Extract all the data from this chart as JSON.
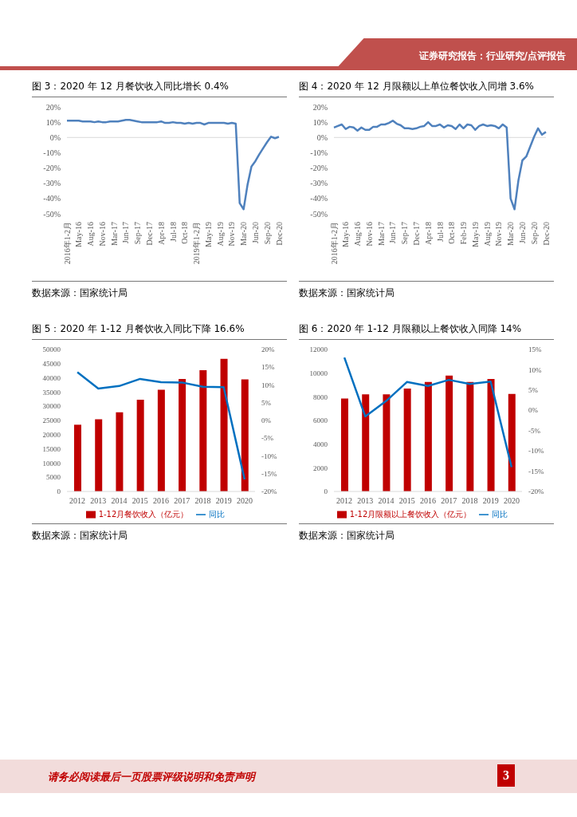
{
  "chart_data": [
    {
      "type": "other",
      "title": "证券研究报告：行业研究/点评报告",
      "annotations": [
        "请务必阅读最后一页股票评级说明和免责声明",
        "3"
      ]
    },
    {
      "type": "line",
      "title": "图 3：2020 年 12 月餐饮收入同比增长 0.4%",
      "annotations": [
        "数据来源：国家统计局"
      ],
      "categories": [
        "2016年1-2月",
        null,
        null,
        "May-16",
        null,
        null,
        "Aug-16",
        null,
        null,
        "Nov-16",
        null,
        null,
        "Mar-17",
        null,
        null,
        "Jun-17",
        null,
        null,
        "Sep-17",
        null,
        null,
        "Dec-17",
        null,
        null,
        "Apr-18",
        null,
        null,
        "Jul-18",
        null,
        null,
        "Oct-18",
        null,
        null,
        "2019年1-2月",
        null,
        null,
        "May-19",
        null,
        null,
        "Aug-19",
        null,
        null,
        "Nov-19",
        null,
        null,
        "Mar-20",
        null,
        null,
        "Jun-20",
        null,
        null,
        "Sep-20",
        null,
        null,
        "Dec-20"
      ],
      "series": [
        {
          "color": "#4f81bd",
          "values": [
            11,
            11,
            11,
            11,
            10.5,
            10.5,
            10.5,
            10,
            10.5,
            10,
            10,
            10.5,
            10.5,
            10.5,
            11,
            11.5,
            11.5,
            11,
            10.5,
            10,
            10,
            10,
            10,
            10,
            10.5,
            9.5,
            9.5,
            10,
            9.5,
            9.5,
            9,
            9.5,
            9,
            9.5,
            9.5,
            8.5,
            9.5,
            9.5,
            9.5,
            9.5,
            9.5,
            9,
            9.5,
            9,
            -43,
            -47,
            -31,
            -19,
            -15.5,
            -11,
            -7,
            -3,
            0.5,
            -0.5,
            0.4
          ]
        }
      ],
      "ylim": [
        -50,
        20
      ],
      "yticks": [
        {
          "value": -50,
          "label": "-50%"
        },
        {
          "value": -40,
          "label": "-40%"
        },
        {
          "value": -30,
          "label": "-30%"
        },
        {
          "value": -20,
          "label": "-20%"
        },
        {
          "value": -10,
          "label": "-10%"
        },
        {
          "value": 0,
          "label": "0%"
        },
        {
          "value": 10,
          "label": "10%"
        },
        {
          "value": 20,
          "label": "20%"
        }
      ],
      "ref_lines": [
        {
          "axis": "y",
          "value": 0,
          "color": "#d9d9d9"
        }
      ],
      "marker": "none"
    },
    {
      "type": "line",
      "title": "图 4：2020 年 12 月限额以上单位餐饮收入同增 3.6%",
      "annotations": [
        "数据来源：国家统计局"
      ],
      "categories": [
        "2016年1-2月",
        null,
        null,
        "May-16",
        null,
        null,
        "Aug-16",
        null,
        null,
        "Nov-16",
        null,
        null,
        "Mar-17",
        null,
        null,
        "Jun-17",
        null,
        null,
        "Sep-17",
        null,
        null,
        "Dec-17",
        null,
        null,
        "Apr-18",
        null,
        null,
        "Jul-18",
        null,
        null,
        "Oct-18",
        null,
        null,
        "Feb-19",
        null,
        null,
        "May-19",
        null,
        null,
        "Aug-19",
        null,
        null,
        "Nov-19",
        null,
        null,
        "Mar-20",
        null,
        null,
        "Jun-20",
        null,
        null,
        "Sep-20",
        null,
        null,
        "Dec-20"
      ],
      "series": [
        {
          "color": "#4f81bd",
          "values": [
            6.5,
            7.5,
            8.5,
            5.5,
            7,
            6.5,
            4.5,
            6.5,
            5,
            5,
            7,
            7,
            8.5,
            8.5,
            9.5,
            11,
            9,
            8,
            6,
            6,
            5.5,
            6,
            7,
            7.5,
            10,
            7.5,
            7.5,
            8.5,
            6.5,
            8,
            7.5,
            5.5,
            8.5,
            6,
            8.5,
            8,
            5,
            7.5,
            8.5,
            7.5,
            8,
            7.5,
            6,
            8.5,
            6.5,
            -40,
            -47,
            -28,
            -15,
            -12.5,
            -6,
            0.5,
            6,
            1.8,
            3.6
          ]
        }
      ],
      "ylim": [
        -50,
        20
      ],
      "yticks": [
        {
          "value": -50,
          "label": "-50%"
        },
        {
          "value": -40,
          "label": "-40%"
        },
        {
          "value": -30,
          "label": "-30%"
        },
        {
          "value": -20,
          "label": "-20%"
        },
        {
          "value": -10,
          "label": "-10%"
        },
        {
          "value": 0,
          "label": "0%"
        },
        {
          "value": 10,
          "label": "10%"
        },
        {
          "value": 20,
          "label": "20%"
        }
      ],
      "ref_lines": [
        {
          "axis": "y",
          "value": 0,
          "color": "#d9d9d9"
        }
      ],
      "marker": "none"
    },
    {
      "type": "bar",
      "title": "图 5：2020 年 1-12 月餐饮收入同比下降 16.6%",
      "annotations": [
        "数据来源：国家统计局"
      ],
      "categories": [
        "2012",
        "2013",
        "2014",
        "2015",
        "2016",
        "2017",
        "2018",
        "2019",
        "2020"
      ],
      "series": [
        {
          "name": "1-12月餐饮收入（亿元）",
          "type": "bar",
          "color": "#c00000",
          "values": [
            23500,
            25400,
            27900,
            32300,
            35800,
            39600,
            42700,
            46700,
            39500
          ]
        },
        {
          "name": "同比",
          "type": "line",
          "axis": "y2",
          "color": "#0070c0",
          "values": [
            13.6,
            9,
            9.7,
            11.7,
            10.8,
            10.7,
            9.5,
            9.4,
            -16.6
          ]
        }
      ],
      "ylim": [
        0,
        50000
      ],
      "yticks": [
        0,
        5000,
        10000,
        15000,
        20000,
        25000,
        30000,
        35000,
        40000,
        45000,
        50000
      ],
      "y2lim": [
        -20,
        20
      ],
      "y2ticks": [
        {
          "value": -20,
          "label": "-20%"
        },
        {
          "value": -15,
          "label": "-15%"
        },
        {
          "value": -10,
          "label": "-10%"
        },
        {
          "value": -5,
          "label": "-5%"
        },
        {
          "value": 0,
          "label": "0%"
        },
        {
          "value": 5,
          "label": "5%"
        },
        {
          "value": 10,
          "label": "10%"
        },
        {
          "value": 15,
          "label": "15%"
        },
        {
          "value": 20,
          "label": "20%"
        }
      ],
      "legend": "bottom",
      "marker": "none"
    },
    {
      "type": "bar",
      "title": "图 6：2020 年 1-12 月限额以上餐饮收入同降 14%",
      "annotations": [
        "数据来源：国家统计局"
      ],
      "categories": [
        "2012",
        "2013",
        "2014",
        "2015",
        "2016",
        "2017",
        "2018",
        "2019",
        "2020"
      ],
      "series": [
        {
          "name": "1-12月限额以上餐饮收入（亿元）",
          "type": "bar",
          "color": "#c00000",
          "values": [
            7850,
            8200,
            8200,
            8700,
            9250,
            9800,
            9250,
            9500,
            8250
          ]
        },
        {
          "name": "同比",
          "type": "line",
          "axis": "y2",
          "color": "#0070c0",
          "values": [
            13,
            -1.5,
            2.3,
            7,
            6,
            7.5,
            6.5,
            7.1,
            -14
          ]
        }
      ],
      "ylim": [
        0,
        12000
      ],
      "yticks": [
        0,
        2000,
        4000,
        6000,
        8000,
        10000,
        12000
      ],
      "y2lim": [
        -20,
        15
      ],
      "y2ticks": [
        {
          "value": -20,
          "label": "-20%"
        },
        {
          "value": -15,
          "label": "-15%"
        },
        {
          "value": -10,
          "label": "-10%"
        },
        {
          "value": -5,
          "label": "-5%"
        },
        {
          "value": 0,
          "label": "0%"
        },
        {
          "value": 5,
          "label": "5%"
        },
        {
          "value": 10,
          "label": "10%"
        },
        {
          "value": 15,
          "label": "15%"
        }
      ],
      "legend": "bottom",
      "marker": "none"
    }
  ]
}
